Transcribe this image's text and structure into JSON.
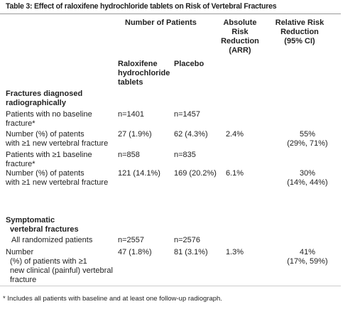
{
  "title": "Table 3: Effect of raloxifene hydrochloride tablets on Risk of Vertebral Fractures",
  "header": {
    "group": "Number of Patients",
    "arr": [
      "Absolute",
      "Risk",
      "Reduction",
      "(ARR)"
    ],
    "rrr": [
      "Relative Risk",
      "Reduction",
      "(95% CI)"
    ],
    "raloxifene": [
      "Raloxifene",
      "hydrochloride",
      "tablets"
    ],
    "placebo": "Placebo"
  },
  "sections": [
    {
      "title": [
        "Fractures diagnosed",
        "radiographically"
      ],
      "rows": [
        {
          "label": [
            "Patients with no baseline",
            "fracture*"
          ],
          "raloxifene": "n=1401",
          "placebo": "n=1457"
        },
        {
          "label": [
            "Number (%) of patents",
            "with ≥1 new vertebral fracture"
          ],
          "raloxifene": "27 (1.9%)",
          "placebo": "62 (4.3%)",
          "arr": "2.4%",
          "rrr": [
            "55%",
            "(29%, 71%)"
          ]
        },
        {
          "label": [
            "Patients with ≥1 baseline",
            "fracture*"
          ],
          "raloxifene": "n=858",
          "placebo": "n=835"
        },
        {
          "label": [
            "Number (%) of patents",
            "with ≥1 new vertebral fracture"
          ],
          "raloxifene": "121 (14.1%)",
          "placebo": "169 (20.2%)",
          "arr": "6.1%",
          "rrr": [
            "30%",
            "(14%, 44%)"
          ]
        }
      ]
    },
    {
      "title": [
        "Symptomatic",
        "vertebral fractures"
      ],
      "rows": [
        {
          "label": [
            "All randomized patients"
          ],
          "raloxifene": "n=2557",
          "placebo": "n=2576"
        },
        {
          "label": [
            "Number",
            "(%) of patients with ≥1",
            "new clinical (painful) vertebral",
            "fracture"
          ],
          "raloxifene": "47 (1.8%)",
          "placebo": "81 (3.1%)",
          "arr": "1.3%",
          "rrr": [
            "41%",
            "(17%, 59%)"
          ]
        }
      ]
    }
  ],
  "footnote": "* Includes all patients with baseline and at least one follow-up radiograph."
}
